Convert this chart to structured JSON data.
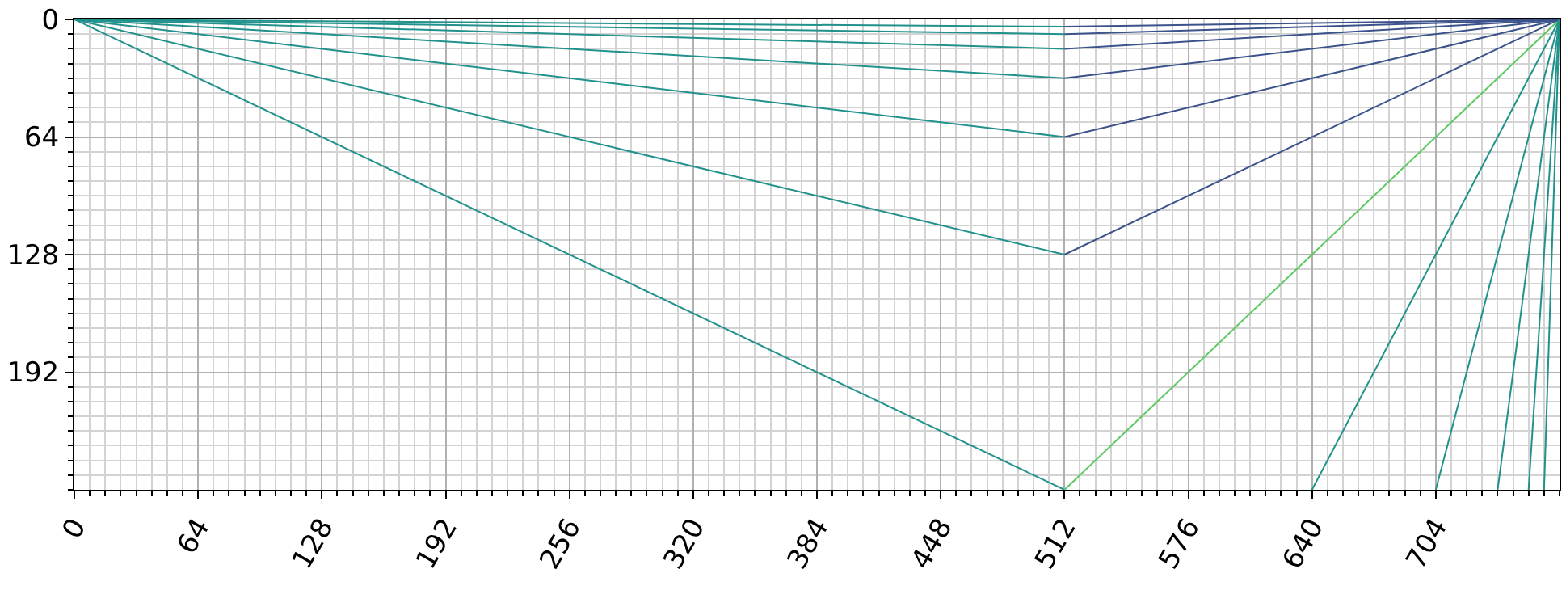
{
  "chart_data": {
    "type": "line",
    "xlim": [
      0,
      768
    ],
    "ylim": [
      256,
      0
    ],
    "xticks": [
      0,
      64,
      128,
      192,
      256,
      320,
      384,
      448,
      512,
      576,
      640,
      704
    ],
    "yticks": [
      0,
      64,
      128,
      192
    ],
    "grid": true,
    "marker": "none",
    "line_style": "solid",
    "series": [
      {
        "x": [
          0,
          512
        ],
        "values": [
          0,
          256
        ],
        "color": "#21918c"
      },
      {
        "x": [
          512,
          768
        ],
        "values": [
          256,
          0
        ],
        "color": "#5ec962"
      },
      {
        "x": [
          0,
          512
        ],
        "values": [
          0,
          128
        ],
        "color": "#21918c"
      },
      {
        "x": [
          512,
          768
        ],
        "values": [
          128,
          0
        ],
        "color": "#3b528b"
      },
      {
        "x": [
          0,
          512
        ],
        "values": [
          0,
          64
        ],
        "color": "#21918c"
      },
      {
        "x": [
          512,
          768
        ],
        "values": [
          64,
          0
        ],
        "color": "#3b528b"
      },
      {
        "x": [
          0,
          512
        ],
        "values": [
          0,
          32
        ],
        "color": "#21918c"
      },
      {
        "x": [
          512,
          768
        ],
        "values": [
          32,
          0
        ],
        "color": "#3b528b"
      },
      {
        "x": [
          0,
          512
        ],
        "values": [
          0,
          16
        ],
        "color": "#21918c"
      },
      {
        "x": [
          512,
          768
        ],
        "values": [
          16,
          0
        ],
        "color": "#3b528b"
      },
      {
        "x": [
          0,
          512
        ],
        "values": [
          0,
          8
        ],
        "color": "#21918c"
      },
      {
        "x": [
          512,
          768
        ],
        "values": [
          8,
          0
        ],
        "color": "#3b528b"
      },
      {
        "x": [
          0,
          512
        ],
        "values": [
          0,
          4
        ],
        "color": "#21918c"
      },
      {
        "x": [
          512,
          768
        ],
        "values": [
          4,
          0
        ],
        "color": "#3b528b"
      },
      {
        "x": [
          640,
          768
        ],
        "values": [
          256,
          0
        ],
        "color": "#21918c"
      },
      {
        "x": [
          704,
          768
        ],
        "values": [
          256,
          0
        ],
        "color": "#21918c"
      },
      {
        "x": [
          736,
          768
        ],
        "values": [
          256,
          0
        ],
        "color": "#21918c"
      },
      {
        "x": [
          752,
          768
        ],
        "values": [
          256,
          0
        ],
        "color": "#21918c"
      },
      {
        "x": [
          760,
          768
        ],
        "values": [
          256,
          0
        ],
        "color": "#21918c"
      }
    ]
  }
}
